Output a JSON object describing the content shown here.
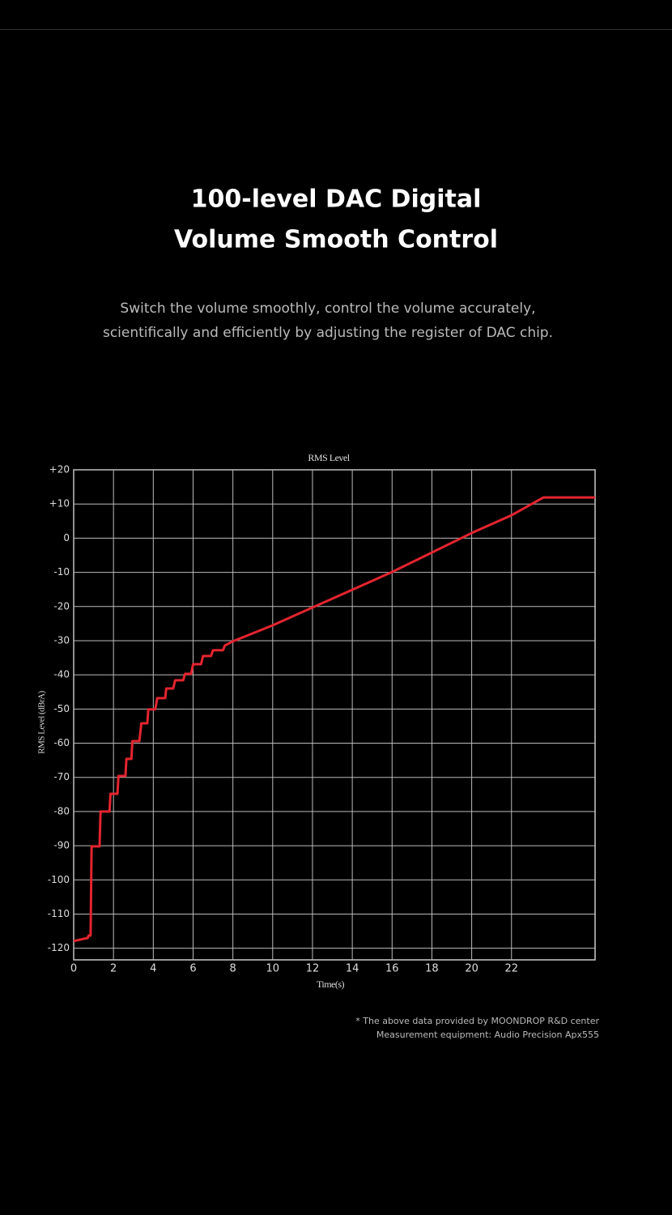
{
  "header": {
    "title_lines": [
      "100-level DAC Digital",
      "Volume Smooth Control"
    ],
    "subtitle_lines": [
      "Switch the volume smoothly, control the volume accurately,",
      "scientifically and efficiently by adjusting the register of DAC chip."
    ]
  },
  "chart_data": {
    "type": "line",
    "title": "RMS Level",
    "x_label": "Time(s)",
    "y_label": "RMS Level (dBrA)",
    "x": [
      0,
      0.7,
      0.75,
      0.85,
      0.9,
      1.3,
      1.35,
      1.8,
      1.85,
      2.2,
      2.25,
      2.6,
      2.65,
      2.9,
      2.95,
      3.3,
      3.4,
      3.7,
      3.75,
      4.1,
      4.2,
      4.6,
      4.65,
      5.0,
      5.1,
      5.5,
      5.6,
      5.9,
      6.0,
      6.4,
      6.5,
      6.9,
      7.0,
      7.5,
      7.6,
      8,
      10,
      12,
      14,
      16,
      18,
      20,
      22,
      23.6,
      26.2
    ],
    "series": [
      {
        "name": "RMS Level",
        "color": "#e3242f",
        "values": [
          -117.9,
          -117,
          -116.3,
          -116.3,
          -90.2,
          -90.2,
          -80,
          -80,
          -74.8,
          -74.8,
          -69.6,
          -69.6,
          -64.6,
          -64.6,
          -59.4,
          -59.4,
          -54.2,
          -54.2,
          -50.1,
          -50.1,
          -46.8,
          -46.8,
          -44,
          -44,
          -41.6,
          -41.6,
          -39.7,
          -39.7,
          -36.9,
          -36.9,
          -34.5,
          -34.5,
          -32.8,
          -32.8,
          -31.4,
          -30.2,
          -25.5,
          -20.3,
          -15.1,
          -9.9,
          -4.2,
          1.5,
          6.7,
          11.9,
          11.9
        ]
      }
    ],
    "xlim": [
      0,
      26.2
    ],
    "xticks": [
      0,
      2,
      4,
      6,
      8,
      10,
      12,
      14,
      16,
      18,
      20,
      22
    ],
    "ylim": [
      -123.4,
      20
    ],
    "yticks": [
      {
        "value": 20,
        "label": "+20"
      },
      {
        "value": 10,
        "label": "+10"
      },
      0,
      -10,
      -20,
      -30,
      -40,
      -50,
      -60,
      -70,
      -80,
      -90,
      -100,
      -110,
      -120
    ],
    "grid": true
  },
  "footnote_lines": [
    "* The above data provided by MOONDROP R&D center",
    "Measurement equipment: Audio Precision Apx555"
  ]
}
